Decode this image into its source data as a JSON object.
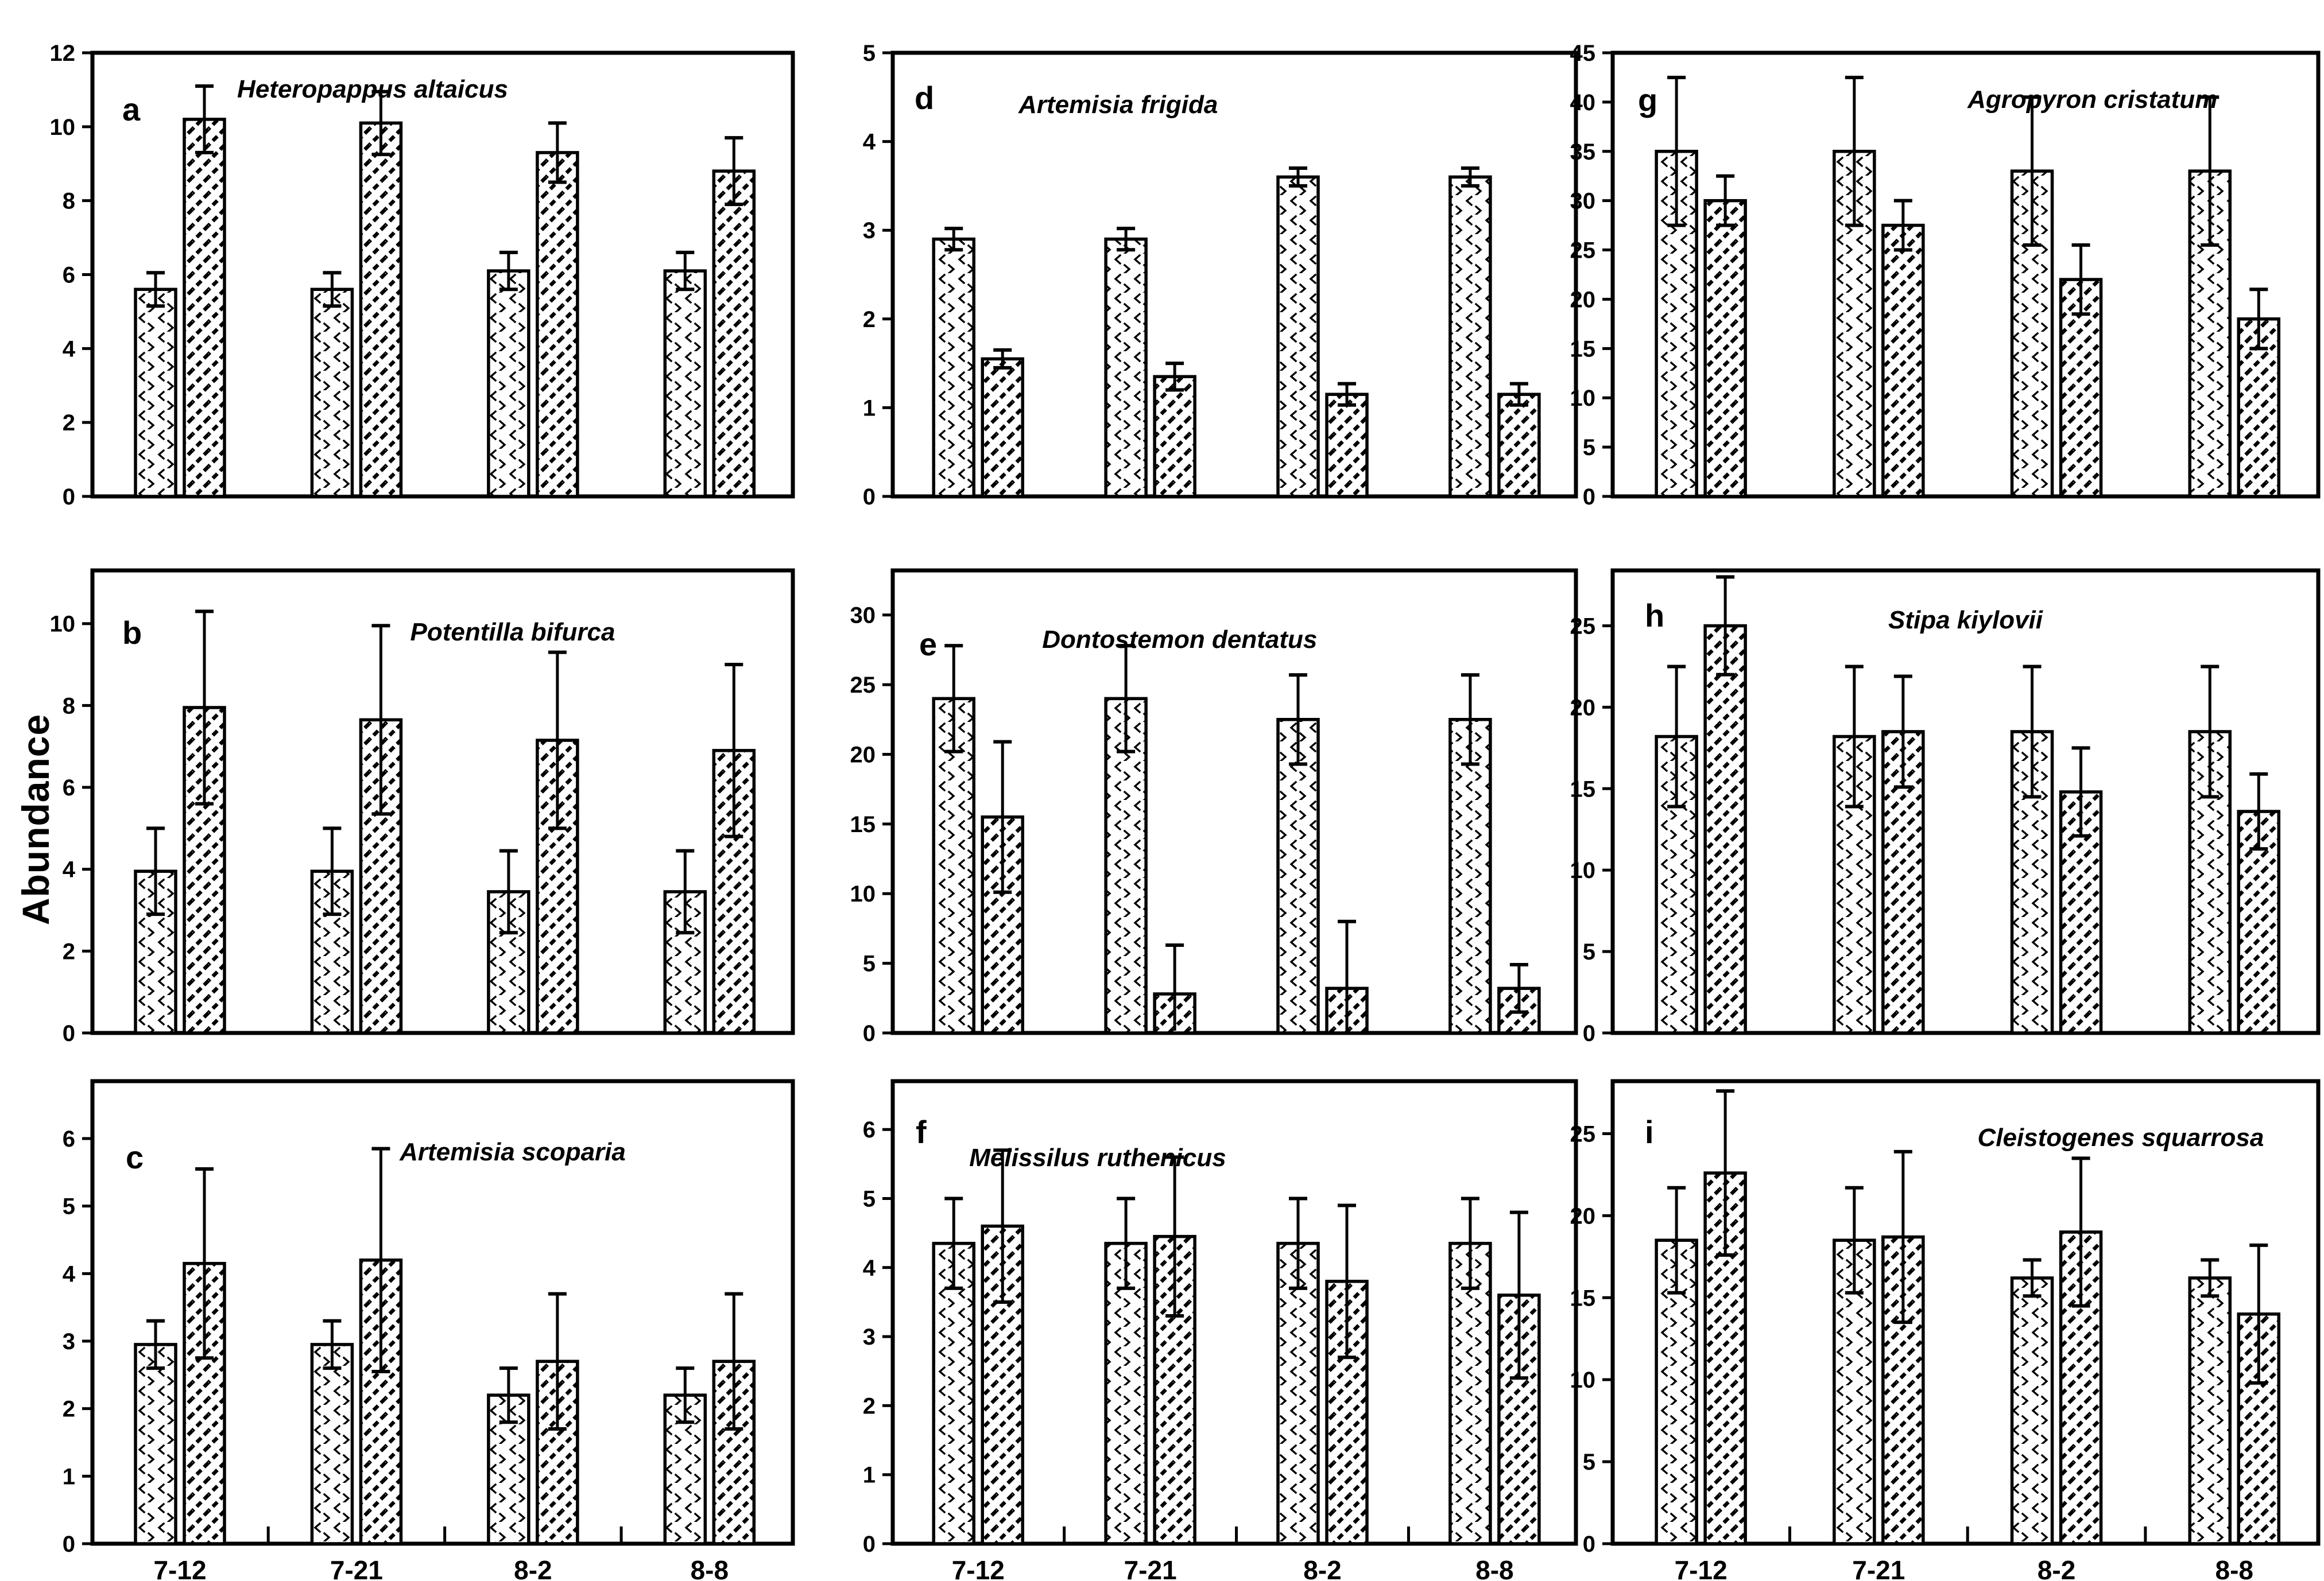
{
  "figure": {
    "ylabel": "Abundance",
    "background": "#ffffff",
    "ink_color": "#000000",
    "series_patterns": [
      "dotted-lattice",
      "diagonal-hatch"
    ]
  },
  "chart_data": [
    {
      "panel": "a",
      "type": "bar",
      "title": "Heteropappus altaicus",
      "row": 0,
      "col": 0,
      "ylim": [
        0,
        12
      ],
      "yticks": [
        0,
        2,
        4,
        6,
        8,
        10,
        12
      ],
      "categories": [
        "7-12",
        "7-21",
        "8-2",
        "8-8"
      ],
      "show_category_labels": false,
      "series": [
        {
          "name": "dotted",
          "values": [
            5.6,
            5.6,
            6.1,
            6.1
          ],
          "errors": [
            0.45,
            0.45,
            0.5,
            0.5
          ]
        },
        {
          "name": "hatched",
          "values": [
            10.2,
            10.1,
            9.3,
            8.8
          ],
          "errors": [
            0.9,
            0.85,
            0.8,
            0.9
          ]
        }
      ]
    },
    {
      "panel": "b",
      "type": "bar",
      "title": "Potentilla bifurca",
      "row": 1,
      "col": 0,
      "ylim": [
        0,
        11.3
      ],
      "yticks": [
        0,
        2,
        4,
        6,
        8,
        10
      ],
      "categories": [
        "7-12",
        "7-21",
        "8-2",
        "8-8"
      ],
      "show_category_labels": false,
      "series": [
        {
          "name": "dotted",
          "values": [
            3.95,
            3.95,
            3.45,
            3.45
          ],
          "errors": [
            1.05,
            1.05,
            1.0,
            1.0
          ]
        },
        {
          "name": "hatched",
          "values": [
            7.95,
            7.65,
            7.15,
            6.9
          ],
          "errors": [
            2.35,
            2.3,
            2.15,
            2.1
          ]
        }
      ]
    },
    {
      "panel": "c",
      "type": "bar",
      "title": "Artemisia scoparia",
      "row": 2,
      "col": 0,
      "ylim": [
        0,
        6.85
      ],
      "yticks": [
        0,
        1,
        2,
        3,
        4,
        5,
        6
      ],
      "categories": [
        "7-12",
        "7-21",
        "8-2",
        "8-8"
      ],
      "show_category_labels": true,
      "series": [
        {
          "name": "dotted",
          "values": [
            2.95,
            2.95,
            2.2,
            2.2
          ],
          "errors": [
            0.35,
            0.35,
            0.4,
            0.4
          ]
        },
        {
          "name": "hatched",
          "values": [
            4.15,
            4.2,
            2.7,
            2.7
          ],
          "errors": [
            1.4,
            1.65,
            1.0,
            1.0
          ]
        }
      ]
    },
    {
      "panel": "d",
      "type": "bar",
      "title": "Artemisia frigida",
      "row": 0,
      "col": 1,
      "ylim": [
        0,
        5
      ],
      "yticks": [
        0,
        1,
        2,
        3,
        4,
        5
      ],
      "categories": [
        "7-12",
        "7-21",
        "8-2",
        "8-8"
      ],
      "show_category_labels": false,
      "series": [
        {
          "name": "dotted",
          "values": [
            2.9,
            2.9,
            3.6,
            3.6
          ],
          "errors": [
            0.12,
            0.12,
            0.1,
            0.1
          ]
        },
        {
          "name": "hatched",
          "values": [
            1.55,
            1.35,
            1.15,
            1.15
          ],
          "errors": [
            0.1,
            0.15,
            0.12,
            0.12
          ]
        }
      ]
    },
    {
      "panel": "e",
      "type": "bar",
      "title": "Dontostemon dentatus",
      "row": 1,
      "col": 1,
      "ylim": [
        0,
        33.2
      ],
      "yticks": [
        0,
        5,
        10,
        15,
        20,
        25,
        30
      ],
      "categories": [
        "7-12",
        "7-21",
        "8-2",
        "8-8"
      ],
      "show_category_labels": false,
      "series": [
        {
          "name": "dotted",
          "values": [
            24,
            24,
            22.5,
            22.5
          ],
          "errors": [
            3.8,
            3.8,
            3.2,
            3.2
          ]
        },
        {
          "name": "hatched",
          "values": [
            15.5,
            2.8,
            3.2,
            3.2
          ],
          "errors": [
            5.4,
            3.5,
            4.8,
            1.7
          ]
        }
      ]
    },
    {
      "panel": "f",
      "type": "bar",
      "title": "Melissilus ruthenicus",
      "row": 2,
      "col": 1,
      "ylim": [
        0,
        6.7
      ],
      "yticks": [
        0,
        1,
        2,
        3,
        4,
        5,
        6
      ],
      "categories": [
        "7-12",
        "7-21",
        "8-2",
        "8-8"
      ],
      "show_category_labels": true,
      "series": [
        {
          "name": "dotted",
          "values": [
            4.35,
            4.35,
            4.35,
            4.35
          ],
          "errors": [
            0.65,
            0.65,
            0.65,
            0.65
          ]
        },
        {
          "name": "hatched",
          "values": [
            4.6,
            4.45,
            3.8,
            3.6
          ],
          "errors": [
            1.1,
            1.15,
            1.1,
            1.2
          ]
        }
      ]
    },
    {
      "panel": "g",
      "type": "bar",
      "title": "Agropyron cristatum",
      "row": 0,
      "col": 2,
      "ylim": [
        0,
        45
      ],
      "yticks": [
        0,
        5,
        10,
        15,
        20,
        25,
        30,
        35,
        40,
        45
      ],
      "categories": [
        "7-12",
        "7-21",
        "8-2",
        "8-8"
      ],
      "show_category_labels": false,
      "series": [
        {
          "name": "dotted",
          "values": [
            35,
            35,
            33,
            33
          ],
          "errors": [
            7.5,
            7.5,
            7.5,
            7.5
          ]
        },
        {
          "name": "hatched",
          "values": [
            30,
            27.5,
            22,
            18
          ],
          "errors": [
            2.5,
            2.5,
            3.5,
            3
          ]
        }
      ]
    },
    {
      "panel": "h",
      "type": "bar",
      "title": "Stipa kiylovii",
      "row": 1,
      "col": 2,
      "ylim": [
        0,
        28.4
      ],
      "yticks": [
        0,
        5,
        10,
        15,
        20,
        25
      ],
      "categories": [
        "7-12",
        "7-21",
        "8-2",
        "8-8"
      ],
      "show_category_labels": false,
      "series": [
        {
          "name": "dotted",
          "values": [
            18.2,
            18.2,
            18.5,
            18.5
          ],
          "errors": [
            4.3,
            4.3,
            4.0,
            4.0
          ]
        },
        {
          "name": "hatched",
          "values": [
            25,
            18.5,
            14.8,
            13.6
          ],
          "errors": [
            3.0,
            3.4,
            2.7,
            2.3
          ]
        }
      ]
    },
    {
      "panel": "i",
      "type": "bar",
      "title": "Cleistogenes squarrosa",
      "row": 2,
      "col": 2,
      "ylim": [
        0,
        28.2
      ],
      "yticks": [
        0,
        5,
        10,
        15,
        20,
        25
      ],
      "categories": [
        "7-12",
        "7-21",
        "8-2",
        "8-8"
      ],
      "show_category_labels": true,
      "series": [
        {
          "name": "dotted",
          "values": [
            18.5,
            18.5,
            16.2,
            16.2
          ],
          "errors": [
            3.2,
            3.2,
            1.1,
            1.1
          ]
        },
        {
          "name": "hatched",
          "values": [
            22.6,
            18.7,
            19.0,
            14.0
          ],
          "errors": [
            5.0,
            5.2,
            4.5,
            4.2
          ]
        }
      ]
    }
  ]
}
